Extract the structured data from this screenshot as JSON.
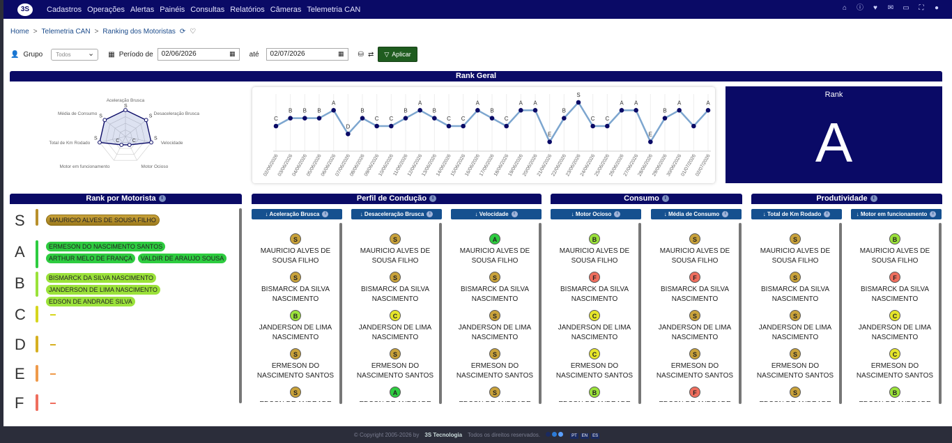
{
  "nav": {
    "logo": "3S",
    "items": [
      "Cadastros",
      "Operações",
      "Alertas",
      "Painéis",
      "Consultas",
      "Relatórios",
      "Câmeras",
      "Telemetria CAN"
    ],
    "icons": [
      "home-icon",
      "info-icon",
      "heart-icon",
      "chat-icon",
      "inbox-icon",
      "fullscreen-icon",
      "user-icon"
    ]
  },
  "breadcrumb": {
    "home": "Home",
    "section": "Telemetria CAN",
    "page": "Ranking dos Motoristas"
  },
  "filters": {
    "group_label": "Grupo",
    "group_value": "Todos",
    "period_label": "Período de",
    "date_from": "02/06/2026",
    "until_label": "até",
    "date_to": "02/07/2026",
    "apply_label": "Aplicar"
  },
  "rank_geral": {
    "title": "Rank Geral",
    "rank_label": "Rank",
    "rank_value": "A"
  },
  "radar": {
    "axes": [
      {
        "label": "Aceleração Brusca",
        "grade": "S"
      },
      {
        "label": "Desaceleração Brusca",
        "grade": "S"
      },
      {
        "label": "Velocidade",
        "grade": "S"
      },
      {
        "label": "Motor Ocioso",
        "grade": "C"
      },
      {
        "label": "Motor em funcionamento",
        "grade": "C"
      },
      {
        "label": "Total de Km Rodado",
        "grade": "S"
      },
      {
        "label": "Média de Consumo",
        "grade": "S"
      }
    ]
  },
  "chart_data": {
    "type": "line",
    "x": [
      "02/06/2026",
      "03/06/2026",
      "04/06/2026",
      "05/06/2026",
      "06/06/2026",
      "07/06/2026",
      "08/06/2026",
      "09/06/2026",
      "10/06/2026",
      "11/06/2026",
      "12/06/2026",
      "13/06/2026",
      "14/06/2026",
      "15/06/2026",
      "16/06/2026",
      "17/06/2026",
      "18/06/2026",
      "19/06/2026",
      "20/06/2026",
      "21/06/2026",
      "22/06/2026",
      "23/06/2026",
      "24/06/2026",
      "25/06/2026",
      "26/06/2026",
      "27/06/2026",
      "28/06/2026",
      "29/06/2026",
      "30/06/2026",
      "01/07/2026",
      "02/07/2026"
    ],
    "grades": [
      "C",
      "B",
      "B",
      "B",
      "A",
      "D",
      "B",
      "C",
      "C",
      "B",
      "A",
      "B",
      "C",
      "C",
      "A",
      "B",
      "C",
      "A",
      "A",
      "E",
      "B",
      "S",
      "C",
      "C",
      "A",
      "A",
      "E",
      "B",
      "A",
      "",
      "A"
    ],
    "values": [
      4,
      5,
      5,
      5,
      6,
      3,
      5,
      4,
      4,
      5,
      6,
      5,
      4,
      4,
      6,
      5,
      4,
      6,
      6,
      2,
      5,
      7,
      4,
      4,
      6,
      6,
      2,
      5,
      6,
      4,
      6
    ]
  },
  "rank_motorista": {
    "title": "Rank por Motorista",
    "rows": [
      {
        "letter": "S",
        "color": "#b8902c",
        "drivers": [
          "MAURICIO ALVES DE SOUSA FILHO"
        ]
      },
      {
        "letter": "A",
        "color": "#2ecc40",
        "drivers": [
          "ERMESON DO NASCIMENTO SANTOS",
          "ARTHUR MELO DE FRANÇA",
          "VALDIR DE ARAUJO SOUSA"
        ]
      },
      {
        "letter": "B",
        "color": "#9be23a",
        "drivers": [
          "BISMARCK DA SILVA NASCIMENTO",
          "JANDERSON DE LIMA NASCIMENTO",
          "EDSON DE ANDRADE SILVA"
        ]
      },
      {
        "letter": "C",
        "color": "#d6d61e",
        "drivers": []
      },
      {
        "letter": "D",
        "color": "#d6b021",
        "drivers": []
      },
      {
        "letter": "E",
        "color": "#ef9a4a",
        "drivers": []
      },
      {
        "letter": "F",
        "color": "#ef6e5e",
        "drivers": []
      }
    ]
  },
  "sections": [
    {
      "title": "Perfil de Condução"
    },
    {
      "title": "Consumo"
    },
    {
      "title": "Produtividade"
    }
  ],
  "columns": [
    {
      "title": "Aceleração Brusca",
      "entries": [
        {
          "grade": "S",
          "name": "MAURICIO ALVES DE SOUSA FILHO"
        },
        {
          "grade": "S",
          "name": "BISMARCK DA SILVA NASCIMENTO"
        },
        {
          "grade": "B",
          "name": "JANDERSON DE LIMA NASCIMENTO"
        },
        {
          "grade": "S",
          "name": "ERMESON DO NASCIMENTO SANTOS"
        },
        {
          "grade": "S",
          "name": "EDSON DE ANDRADE SILVA"
        }
      ]
    },
    {
      "title": "Desaceleração Brusca",
      "entries": [
        {
          "grade": "S",
          "name": "MAURICIO ALVES DE SOUSA FILHO"
        },
        {
          "grade": "S",
          "name": "BISMARCK DA SILVA NASCIMENTO"
        },
        {
          "grade": "C",
          "name": "JANDERSON DE LIMA NASCIMENTO"
        },
        {
          "grade": "S",
          "name": "ERMESON DO NASCIMENTO SANTOS"
        },
        {
          "grade": "A",
          "name": "EDSON DE ANDRADE SILVA"
        }
      ]
    },
    {
      "title": "Velocidade",
      "entries": [
        {
          "grade": "A",
          "name": "MAURICIO ALVES DE SOUSA FILHO"
        },
        {
          "grade": "S",
          "name": "BISMARCK DA SILVA NASCIMENTO"
        },
        {
          "grade": "S",
          "name": "JANDERSON DE LIMA NASCIMENTO"
        },
        {
          "grade": "S",
          "name": "ERMESON DO NASCIMENTO SANTOS"
        },
        {
          "grade": "S",
          "name": "EDSON DE ANDRADE SILVA"
        }
      ]
    },
    {
      "title": "Motor Ocioso",
      "entries": [
        {
          "grade": "B",
          "name": "MAURICIO ALVES DE SOUSA FILHO"
        },
        {
          "grade": "F",
          "name": "BISMARCK DA SILVA NASCIMENTO"
        },
        {
          "grade": "C",
          "name": "JANDERSON DE LIMA NASCIMENTO"
        },
        {
          "grade": "C",
          "name": "ERMESON DO NASCIMENTO SANTOS"
        },
        {
          "grade": "B",
          "name": "EDSON DE ANDRADE SILVA"
        }
      ]
    },
    {
      "title": "Média de Consumo",
      "entries": [
        {
          "grade": "S",
          "name": "MAURICIO ALVES DE SOUSA FILHO"
        },
        {
          "grade": "F",
          "name": "BISMARCK DA SILVA NASCIMENTO"
        },
        {
          "grade": "S",
          "name": "JANDERSON DE LIMA NASCIMENTO"
        },
        {
          "grade": "S",
          "name": "ERMESON DO NASCIMENTO SANTOS"
        },
        {
          "grade": "F",
          "name": "EDSON DE ANDRADE SILVA"
        }
      ]
    },
    {
      "title": "Total de Km Rodado",
      "entries": [
        {
          "grade": "S",
          "name": "MAURICIO ALVES DE SOUSA FILHO"
        },
        {
          "grade": "S",
          "name": "BISMARCK DA SILVA NASCIMENTO"
        },
        {
          "grade": "S",
          "name": "JANDERSON DE LIMA NASCIMENTO"
        },
        {
          "grade": "S",
          "name": "ERMESON DO NASCIMENTO SANTOS"
        },
        {
          "grade": "S",
          "name": "EDSON DE ANDRADE SILVA"
        }
      ]
    },
    {
      "title": "Motor em funcionamento",
      "entries": [
        {
          "grade": "B",
          "name": "MAURICIO ALVES DE SOUSA FILHO"
        },
        {
          "grade": "F",
          "name": "BISMARCK DA SILVA NASCIMENTO"
        },
        {
          "grade": "C",
          "name": "JANDERSON DE LIMA NASCIMENTO"
        },
        {
          "grade": "C",
          "name": "ERMESON DO NASCIMENTO SANTOS"
        },
        {
          "grade": "B",
          "name": "EDSON DE ANDRADE SILVA"
        }
      ]
    }
  ],
  "grade_colors": {
    "S": "#c9a23a",
    "A": "#2ecc40",
    "B": "#9be23a",
    "C": "#e5e52a",
    "D": "#d6b021",
    "E": "#ef9a4a",
    "F": "#ef6e5e"
  },
  "footer": {
    "copyright": "© Copyright 2005-2026 by",
    "company": "3S Tecnologia",
    "rights": "Todos os direitos reservados.",
    "langs": [
      "PT",
      "EN",
      "ES"
    ]
  }
}
